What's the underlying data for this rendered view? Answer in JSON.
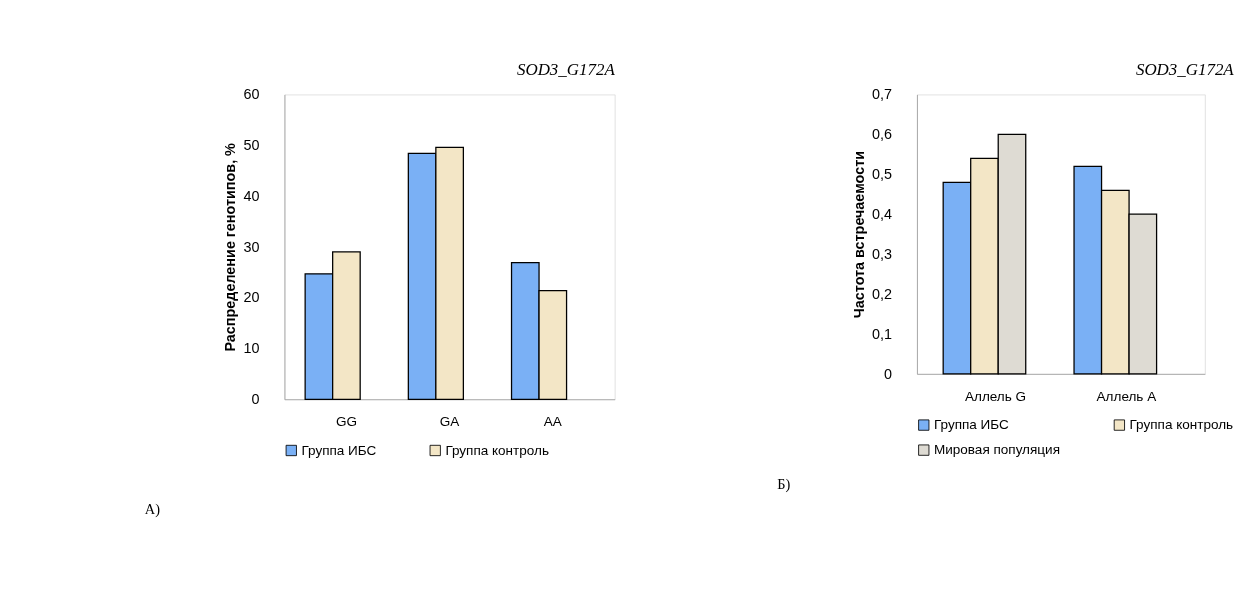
{
  "chart_data": [
    {
      "type": "bar",
      "title": "SOD3_G172A",
      "ylabel": "Распределение генотипов, %",
      "categories": [
        "GG",
        "GA",
        "AA"
      ],
      "series": [
        {
          "name": "Группа ИБС",
          "color": "#7ab0f5",
          "values": [
            24.7,
            48.4,
            26.9
          ]
        },
        {
          "name": "Группа контроль",
          "color": "#f3e6c6",
          "values": [
            29.0,
            49.6,
            21.4
          ]
        }
      ],
      "ylim": [
        0,
        60
      ],
      "yticks": [
        0,
        10,
        20,
        30,
        40,
        50,
        60
      ],
      "grid": false,
      "legend": "bottom",
      "annotations": [
        "А)"
      ]
    },
    {
      "type": "bar",
      "title": "SOD3_G172A",
      "ylabel": "Частота встречаемости",
      "categories": [
        "Аллель G",
        "Аллель A"
      ],
      "series": [
        {
          "name": "Группа ИБС",
          "color": "#7ab0f5",
          "values": [
            0.48,
            0.52
          ]
        },
        {
          "name": "Группа контроль",
          "color": "#f3e6c6",
          "values": [
            0.54,
            0.46
          ]
        },
        {
          "name": "Мировая популяция",
          "color": "#dedbd3",
          "values": [
            0.6,
            0.4
          ]
        }
      ],
      "ylim": [
        0,
        0.7
      ],
      "yticks": [
        0,
        {
          "value": 0.1,
          "label": "0,1"
        },
        {
          "value": 0.2,
          "label": "0,2"
        },
        {
          "value": 0.3,
          "label": "0,3"
        },
        {
          "value": 0.4,
          "label": "0,4"
        },
        {
          "value": 0.5,
          "label": "0,5"
        },
        {
          "value": 0.6,
          "label": "0,6"
        },
        {
          "value": 0.7,
          "label": "0,7"
        }
      ],
      "grid": false,
      "legend": "bottom",
      "annotations": [
        "Б)"
      ]
    }
  ]
}
